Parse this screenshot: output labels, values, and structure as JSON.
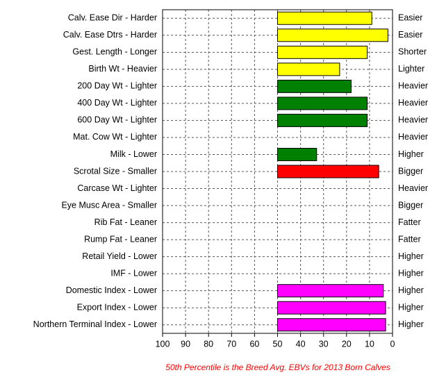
{
  "chart_data": {
    "type": "bar",
    "orientation": "horizontal",
    "categories": [
      "Calv. Ease Dir - Harder",
      "Calv. Ease Dtrs - Harder",
      "Gest. Length - Longer",
      "Birth Wt - Heavier",
      "200 Day Wt - Lighter",
      "400 Day Wt - Lighter",
      "600 Day Wt - Lighter",
      "Mat. Cow Wt - Lighter",
      "Milk - Lower",
      "Scrotal Size - Smaller",
      "Carcase Wt - Lighter",
      "Eye Musc Area - Smaller",
      "Rib Fat - Leaner",
      "Rump Fat - Leaner",
      "Retail Yield - Lower",
      "IMF - Lower",
      "Domestic Index - Lower",
      "Export Index - Lower",
      "Northern Terminal Index - Lower"
    ],
    "right_labels": [
      "Easier",
      "Easier",
      "Shorter",
      "Lighter",
      "Heavier",
      "Heavier",
      "Heavier",
      "Heavier",
      "Higher",
      "Bigger",
      "Heavier",
      "Bigger",
      "Fatter",
      "Fatter",
      "Higher",
      "Higher",
      "Higher",
      "Higher",
      "Higher"
    ],
    "values": [
      9,
      2,
      11,
      23,
      18,
      11,
      11,
      50,
      33,
      6,
      50,
      50,
      50,
      50,
      50,
      50,
      4,
      3,
      3
    ],
    "colors": [
      "#ffff00",
      "#ffff00",
      "#ffff00",
      "#ffff00",
      "#008000",
      "#008000",
      "#008000",
      "#008000",
      "#008000",
      "#ff0000",
      "#ff0000",
      "#ff0000",
      "#ff0000",
      "#ff0000",
      "#ff0000",
      "#ff0000",
      "#ff00ff",
      "#ff00ff",
      "#ff00ff"
    ],
    "bar_base": 50,
    "xlim": [
      100,
      0
    ],
    "xticks": [
      100,
      90,
      80,
      70,
      60,
      50,
      40,
      30,
      20,
      10,
      0
    ],
    "grid": true,
    "footnote": "50th Percentile is the Breed Avg. EBVs for 2013 Born Calves"
  }
}
